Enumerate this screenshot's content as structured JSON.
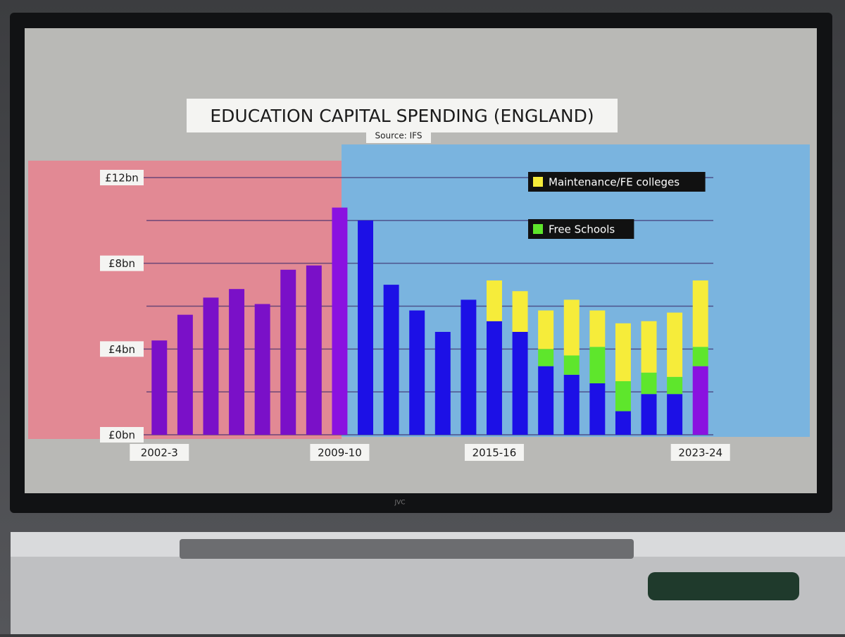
{
  "brand": "JVC",
  "chart_data": {
    "type": "stacked_bar",
    "title": "EDUCATION CAPITAL SPENDING (ENGLAND)",
    "subtitle": "Source: IFS",
    "categories": [
      "2002-3",
      null,
      null,
      null,
      null,
      null,
      null,
      "2009-10",
      null,
      null,
      null,
      null,
      null,
      "2015-16",
      null,
      null,
      null,
      null,
      null,
      null,
      null,
      "2023-24"
    ],
    "series": [
      {
        "colors": [
          "#7a10c8",
          "#7a10c8",
          "#7a10c8",
          "#7a10c8",
          "#7a10c8",
          "#7a10c8",
          "#7a10c8",
          "#8a12e0",
          "#1c10e6",
          "#1c10e6",
          "#1c10e6",
          "#1c10e6",
          "#1c10e6",
          "#1c10e6",
          "#1c10e6",
          "#1c10e6",
          "#1c10e6",
          "#1c10e6",
          "#1c10e6",
          "#1c10e6",
          "#1c10e6",
          "#8a12e0"
        ],
        "values": [
          4.4,
          5.6,
          6.4,
          6.8,
          6.1,
          7.7,
          7.9,
          10.6,
          10.0,
          7.0,
          5.8,
          4.8,
          6.3,
          5.3,
          4.8,
          3.2,
          2.8,
          2.4,
          1.1,
          1.9,
          1.9,
          3.2
        ]
      },
      {
        "name": "Free Schools",
        "color": "#5ee62c",
        "values": [
          null,
          null,
          null,
          null,
          null,
          null,
          null,
          null,
          null,
          null,
          null,
          null,
          null,
          null,
          null,
          0.8,
          0.9,
          1.7,
          1.4,
          1.0,
          0.8,
          0.9
        ]
      },
      {
        "name": "Maintenance/FE colleges",
        "color": "#f6ec3a",
        "values": [
          null,
          null,
          null,
          null,
          null,
          null,
          null,
          null,
          null,
          null,
          null,
          null,
          null,
          1.9,
          1.9,
          1.8,
          2.6,
          1.7,
          2.7,
          2.4,
          3.0,
          3.1
        ]
      }
    ],
    "ylim": [
      0,
      12
    ],
    "yticks": [
      {
        "value": 0,
        "label": "£0bn"
      },
      {
        "value": 4,
        "label": "£4bn"
      },
      {
        "value": 8,
        "label": "£8bn"
      },
      {
        "value": 12,
        "label": "£12bn"
      }
    ],
    "minor_yticks": [
      2,
      6,
      10
    ],
    "grid": true
  }
}
